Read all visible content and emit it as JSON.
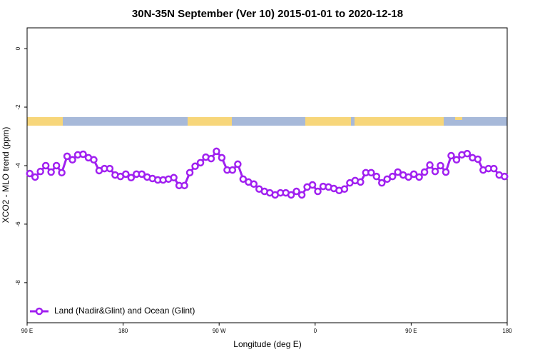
{
  "chart_data": {
    "type": "line",
    "title": "30N-35N September (Ver 10)   2015-01-01 to 2020-12-18",
    "x_label": "Longitude (deg E)",
    "y_label": "XCO2 - MLO trend (ppm)",
    "xlim": [
      90,
      540
    ],
    "ylim": [
      -9.37,
      0.71
    ],
    "xticks": [
      {
        "value": 90,
        "label": "90 E"
      },
      180,
      {
        "value": 270,
        "label": "90 W"
      },
      {
        "value": 360,
        "label": "0"
      },
      {
        "value": 450,
        "label": "90 E"
      },
      {
        "value": 540,
        "label": "180"
      }
    ],
    "yticks": [
      0,
      -2,
      -4,
      -6,
      -8
    ],
    "legend": "bottom-left",
    "x": [
      92.5,
      97.5,
      102.5,
      107.5,
      112.5,
      117.5,
      122.5,
      127.5,
      132.5,
      137.5,
      142.5,
      147.5,
      152.5,
      157.5,
      162.5,
      167.5,
      172.5,
      177.5,
      182.5,
      187.5,
      192.5,
      197.5,
      202.5,
      207.5,
      212.5,
      217.5,
      222.5,
      227.5,
      232.5,
      237.5,
      242.5,
      247.5,
      252.5,
      257.5,
      262.5,
      267.5,
      272.5,
      277.5,
      282.5,
      287.5,
      292.5,
      297.5,
      302.5,
      307.5,
      312.5,
      317.5,
      322.5,
      327.5,
      332.5,
      337.5,
      342.5,
      347.5,
      352.5,
      357.5,
      362.5,
      367.5,
      372.5,
      377.5,
      382.5,
      387.5,
      392.5,
      397.5,
      402.5,
      407.5,
      412.5,
      417.5,
      422.5,
      427.5,
      432.5,
      437.5,
      442.5,
      447.5,
      452.5,
      457.5,
      462.5,
      467.5,
      472.5,
      477.5,
      482.5,
      487.5,
      492.5,
      497.5,
      502.5,
      507.5,
      512.5,
      517.5,
      522.5,
      527.5,
      532.5,
      537.5
    ],
    "series": [
      {
        "name": "Land (Nadir&Glint) and Ocean (Glint)",
        "color": "#a020f0",
        "values": [
          -4.27,
          -4.39,
          -4.2,
          -4.0,
          -4.22,
          -4.0,
          -4.24,
          -3.68,
          -3.8,
          -3.63,
          -3.61,
          -3.73,
          -3.8,
          -4.17,
          -4.1,
          -4.1,
          -4.32,
          -4.37,
          -4.29,
          -4.41,
          -4.29,
          -4.29,
          -4.39,
          -4.44,
          -4.49,
          -4.49,
          -4.46,
          -4.41,
          -4.68,
          -4.68,
          -4.24,
          -4.02,
          -3.9,
          -3.71,
          -3.76,
          -3.51,
          -3.73,
          -4.15,
          -4.15,
          -3.95,
          -4.46,
          -4.56,
          -4.63,
          -4.8,
          -4.88,
          -4.93,
          -5.0,
          -4.93,
          -4.93,
          -5.0,
          -4.88,
          -5.0,
          -4.73,
          -4.66,
          -4.88,
          -4.71,
          -4.73,
          -4.78,
          -4.85,
          -4.8,
          -4.59,
          -4.51,
          -4.56,
          -4.24,
          -4.24,
          -4.37,
          -4.59,
          -4.46,
          -4.37,
          -4.22,
          -4.32,
          -4.39,
          -4.29,
          -4.39,
          -4.22,
          -3.98,
          -4.2,
          -4.0,
          -4.22,
          -3.66,
          -3.8,
          -3.63,
          -3.59,
          -3.73,
          -3.78,
          -4.15,
          -4.1,
          -4.1,
          -4.32,
          -4.37
        ]
      }
    ]
  }
}
